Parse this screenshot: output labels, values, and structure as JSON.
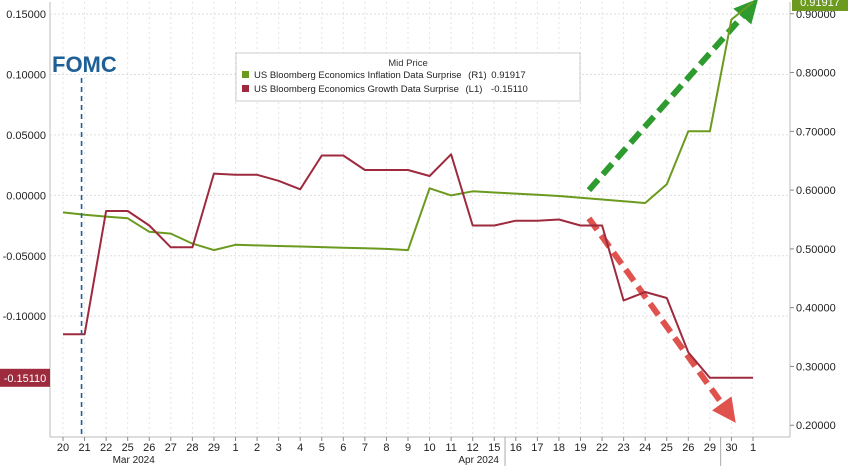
{
  "chart_data": {
    "type": "line",
    "legend_title": "Mid Price",
    "legend_position": "top-center",
    "grid": true,
    "annotation": "FOMC",
    "annotation_x": "21",
    "x": [
      "20",
      "21",
      "22",
      "25",
      "26",
      "27",
      "28",
      "29",
      "1",
      "2",
      "3",
      "4",
      "5",
      "6",
      "7",
      "8",
      "9",
      "10",
      "11",
      "12",
      "15",
      "16",
      "17",
      "18",
      "19",
      "22",
      "23",
      "24",
      "25",
      "26",
      "29",
      "30",
      "1"
    ],
    "month_labels": [
      {
        "label": "Mar 2024",
        "at": "25"
      },
      {
        "label": "Apr 2024",
        "at": "12"
      }
    ],
    "y_left": {
      "ticks": [
        "0.15000",
        "0.10000",
        "0.05000",
        "0.00000",
        "-0.05000",
        "-0.10000"
      ],
      "tick_values": [
        0.15,
        0.1,
        0.05,
        0.0,
        -0.05,
        -0.1
      ],
      "ylim": [
        -0.2,
        0.16
      ]
    },
    "y_right": {
      "ticks": [
        "0.90000",
        "0.80000",
        "0.70000",
        "0.60000",
        "0.50000",
        "0.40000",
        "0.30000",
        "0.20000"
      ],
      "tick_values": [
        0.9,
        0.8,
        0.7,
        0.6,
        0.5,
        0.4,
        0.3,
        0.2
      ],
      "ylim": [
        0.18,
        0.92
      ]
    },
    "series": [
      {
        "name": "US Bloomberg Economics Inflation Data Surprise",
        "axis": "R1",
        "legend_tag": "(R1)",
        "last_label": "0.91917",
        "color": "#6b9a1f",
        "values": [
          0.562,
          0.558,
          0.555,
          0.552,
          0.529,
          0.526,
          0.509,
          0.498,
          0.507,
          0.506,
          0.505,
          0.504,
          0.503,
          0.502,
          0.501,
          0.5,
          0.498,
          0.603,
          0.591,
          0.598,
          0.596,
          0.594,
          0.592,
          0.59,
          0.587,
          0.584,
          0.581,
          0.578,
          0.61,
          0.7,
          0.7,
          0.89,
          0.92
        ]
      },
      {
        "name": "US Bloomberg Economics Growth Data Surprise",
        "axis": "L1",
        "legend_tag": "(L1)",
        "last_label": "-0.15110",
        "color": "#9e2a3e",
        "values": [
          -0.115,
          -0.115,
          -0.013,
          -0.013,
          -0.025,
          -0.043,
          -0.043,
          0.018,
          0.017,
          0.017,
          0.012,
          0.005,
          0.033,
          0.033,
          0.021,
          0.021,
          0.021,
          0.016,
          0.034,
          -0.025,
          -0.025,
          -0.021,
          -0.021,
          -0.02,
          -0.025,
          -0.025,
          -0.087,
          -0.08,
          -0.085,
          -0.13,
          -0.151,
          -0.151,
          -0.151
        ]
      }
    ],
    "arrows": [
      {
        "name": "up-arrow",
        "color": "#2e9b2e",
        "from": [
          "18",
          0.6
        ],
        "to": [
          "1",
          0.912
        ]
      },
      {
        "name": "down-arrow",
        "color": "#e0524e",
        "from": [
          "18",
          0.552
        ],
        "to": [
          "30",
          0.219
        ]
      }
    ]
  }
}
